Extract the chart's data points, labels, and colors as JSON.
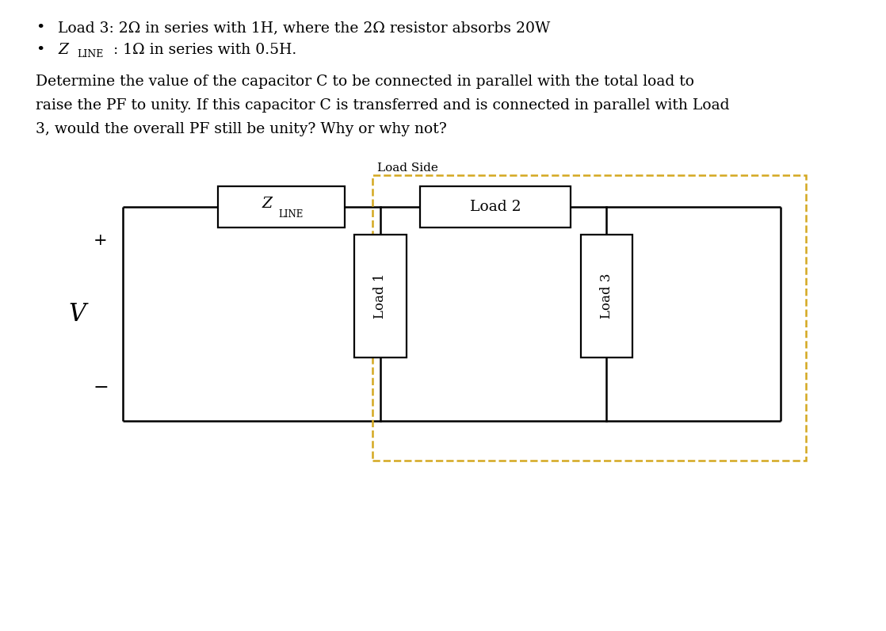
{
  "background_color": "#ffffff",
  "text_color": "#000000",
  "orange_color": "#D4A820",
  "bullet1": "Load 3: 2Ω in series with 1H, where the 2Ω resistor absorbs 20W",
  "bullet2_Z": "Z",
  "bullet2_sub": "LINE",
  "bullet2_rest": ": 1Ω in series with 0.5H.",
  "para_line1": "Determine the value of the capacitor C to be connected in parallel with the total load to",
  "para_line2": "raise the PF to unity. If this capacitor C is transferred and is connected in parallel with Load",
  "para_line3": "3, would the overall PF still be unity? Why or why not?",
  "load_side_label": "Load Side",
  "zline_Z": "Z",
  "zline_sub": "LINE",
  "load1_label": "Load 1",
  "load2_label": "Load 2",
  "load3_label": "Load 3",
  "plus_label": "+",
  "minus_label": "−",
  "v_label": "V",
  "fig_width": 11.18,
  "fig_height": 7.96,
  "dpi": 100
}
